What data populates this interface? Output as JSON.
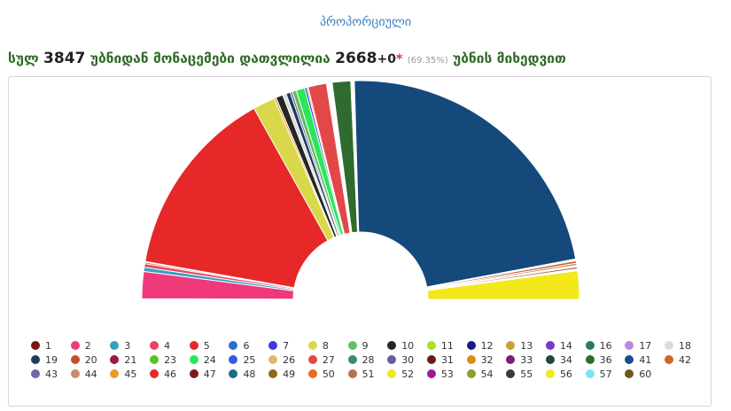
{
  "header": {
    "tab_title": "პროპორციული",
    "summary_prefix": "სულ",
    "total_precincts": "3847",
    "summary_mid": "უბნიდან მონაცემები დათვლილია",
    "counted_precincts": "2668",
    "plus_sign": "+",
    "extra_count": "0",
    "star": "*",
    "percent": "(69.35%)",
    "summary_suffix": "უბნის მიხედვით"
  },
  "chart_data": {
    "type": "pie",
    "variant": "semicircle-donut",
    "start_angle": 180,
    "end_angle": 0,
    "slices": [
      {
        "label": "57",
        "value": 0.1,
        "color": "#7fe3ef"
      },
      {
        "label": "2",
        "value": 3.8,
        "color": "#f0397a"
      },
      {
        "label": "3",
        "value": 0.6,
        "color": "#3a9fc2"
      },
      {
        "label": "4",
        "value": 0.5,
        "color": "#e8455e"
      },
      {
        "label": "5",
        "value": 0.2,
        "color": "#e02a2a"
      },
      {
        "label": "41",
        "value": 0.1,
        "color": "#1a4d8a"
      },
      {
        "label": "46",
        "value": 27.0,
        "color": "#e62828"
      },
      {
        "label": "8",
        "value": 3.1,
        "color": "#d8d84a"
      },
      {
        "label": "45",
        "value": 0.3,
        "color": "#ec9b2c"
      },
      {
        "label": "10",
        "value": 1.0,
        "color": "#252525"
      },
      {
        "label": "18",
        "value": 0.5,
        "color": "#dcdcdc"
      },
      {
        "label": "19",
        "value": 0.6,
        "color": "#1e3a5c"
      },
      {
        "label": "30",
        "value": 0.3,
        "color": "#6a5a9a"
      },
      {
        "label": "9",
        "value": 0.6,
        "color": "#5cc25c"
      },
      {
        "label": "24",
        "value": 1.2,
        "color": "#2ae65a"
      },
      {
        "label": "7",
        "value": 0.3,
        "color": "#3a3ae0"
      },
      {
        "label": "13",
        "value": 0.2,
        "color": "#c8a038"
      },
      {
        "label": "27",
        "value": 2.6,
        "color": "#e24848"
      },
      {
        "label": "26",
        "value": 0.8,
        "color": "#ffffff"
      },
      {
        "label": "36",
        "value": 2.6,
        "color": "#2f6b2f"
      },
      {
        "label": "40",
        "value": 0.4,
        "color": "#ffffff"
      },
      {
        "label": "1",
        "value": 0.1,
        "color": "#7a1515"
      },
      {
        "label": "6",
        "value": 43.0,
        "color": "#15497c"
      },
      {
        "label": "48",
        "value": 0.25,
        "color": "#ffffff"
      },
      {
        "label": "42",
        "value": 0.35,
        "color": "#d2622a"
      },
      {
        "label": "44",
        "value": 0.3,
        "color": "#c98a6a"
      },
      {
        "label": "47",
        "value": 0.2,
        "color": "#ffffff"
      },
      {
        "label": "51",
        "value": 0.3,
        "color": "#b87050"
      },
      {
        "label": "55",
        "value": 0.25,
        "color": "#ffffff"
      },
      {
        "label": "56",
        "value": 4.0,
        "color": "#f2e81a"
      }
    ],
    "legend": [
      {
        "label": "1",
        "color": "#7a1515"
      },
      {
        "label": "2",
        "color": "#f0397a"
      },
      {
        "label": "3",
        "color": "#3a9fc2"
      },
      {
        "label": "4",
        "color": "#e8455e"
      },
      {
        "label": "5",
        "color": "#e02a2a"
      },
      {
        "label": "6",
        "color": "#2a6fcf"
      },
      {
        "label": "7",
        "color": "#3a3ae0"
      },
      {
        "label": "8",
        "color": "#d8d84a"
      },
      {
        "label": "9",
        "color": "#5cc25c"
      },
      {
        "label": "10",
        "color": "#252525"
      },
      {
        "label": "11",
        "color": "#a6e02a"
      },
      {
        "label": "12",
        "color": "#1a1a8a"
      },
      {
        "label": "13",
        "color": "#c8a038"
      },
      {
        "label": "14",
        "color": "#7a3ac8"
      },
      {
        "label": "16",
        "color": "#2a7a6a"
      },
      {
        "label": "17",
        "color": "#b88ae0"
      },
      {
        "label": "18",
        "color": "#dcdcdc"
      },
      {
        "label": "19",
        "color": "#1e3a5c"
      },
      {
        "label": "20",
        "color": "#c0502a"
      },
      {
        "label": "21",
        "color": "#9a1a4a"
      },
      {
        "label": "23",
        "color": "#5cc22a"
      },
      {
        "label": "24",
        "color": "#2ae65a"
      },
      {
        "label": "25",
        "color": "#3a5ae0"
      },
      {
        "label": "26",
        "color": "#e0b86a"
      },
      {
        "label": "27",
        "color": "#e24848"
      },
      {
        "label": "28",
        "color": "#3a8a6a"
      },
      {
        "label": "30",
        "color": "#6a5a9a"
      },
      {
        "label": "31",
        "color": "#6a1a1a"
      },
      {
        "label": "32",
        "color": "#e08a1a"
      },
      {
        "label": "33",
        "color": "#7a1a7a"
      },
      {
        "label": "34",
        "color": "#1e4a3a"
      },
      {
        "label": "36",
        "color": "#2f6b2f"
      },
      {
        "label": "41",
        "color": "#1a4d8a"
      },
      {
        "label": "42",
        "color": "#d2622a"
      },
      {
        "label": "43",
        "color": "#6a6aaa"
      },
      {
        "label": "44",
        "color": "#c98a6a"
      },
      {
        "label": "45",
        "color": "#ec9b2c"
      },
      {
        "label": "46",
        "color": "#e62828"
      },
      {
        "label": "47",
        "color": "#7a1a1a"
      },
      {
        "label": "48",
        "color": "#1a6a8a"
      },
      {
        "label": "49",
        "color": "#8a6a1a"
      },
      {
        "label": "50",
        "color": "#ec6a1a"
      },
      {
        "label": "51",
        "color": "#b87050"
      },
      {
        "label": "52",
        "color": "#f2e81a"
      },
      {
        "label": "53",
        "color": "#9a1a9a"
      },
      {
        "label": "54",
        "color": "#8aa02a"
      },
      {
        "label": "55",
        "color": "#3a3a3a"
      },
      {
        "label": "56",
        "color": "#f2e81a"
      },
      {
        "label": "57",
        "color": "#7fe3ef"
      },
      {
        "label": "60",
        "color": "#6a5a1a"
      }
    ]
  }
}
